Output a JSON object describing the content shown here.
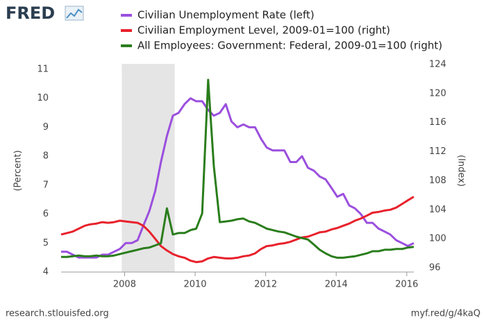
{
  "logo": "FRED",
  "source": "research.stlouisfed.org",
  "short_url": "myf.red/g/4kaQ",
  "chart_data": {
    "type": "line",
    "ylabel": "(Percent)",
    "y2label": "(Index)",
    "x": [
      2006.2,
      2006.37,
      2006.53,
      2006.7,
      2006.87,
      2007.03,
      2007.2,
      2007.37,
      2007.53,
      2007.7,
      2007.87,
      2008.03,
      2008.2,
      2008.37,
      2008.53,
      2008.7,
      2008.87,
      2009.03,
      2009.2,
      2009.37,
      2009.53,
      2009.7,
      2009.87,
      2010.03,
      2010.2,
      2010.37,
      2010.53,
      2010.7,
      2010.87,
      2011.03,
      2011.2,
      2011.37,
      2011.53,
      2011.7,
      2011.87,
      2012.03,
      2012.2,
      2012.37,
      2012.53,
      2012.7,
      2012.87,
      2013.03,
      2013.2,
      2013.37,
      2013.53,
      2013.7,
      2013.87,
      2014.03,
      2014.2,
      2014.37,
      2014.53,
      2014.7,
      2014.87,
      2015.03,
      2015.2,
      2015.37,
      2015.53,
      2015.7,
      2015.87,
      2016.03,
      2016.2
    ],
    "xlim": [
      2006.2,
      2016.2
    ],
    "xticks": [
      2008,
      2010,
      2012,
      2014,
      2016
    ],
    "ylim": [
      4,
      11
    ],
    "yticks": [
      4,
      5,
      6,
      7,
      8,
      9,
      10,
      11
    ],
    "y2lim": [
      95.43,
      123.33
    ],
    "y2ticks": [
      96,
      100,
      104,
      108,
      112,
      116,
      120,
      124
    ],
    "recession": [
      2007.92,
      2009.42
    ],
    "grid": false,
    "legend": "top-left",
    "series": [
      {
        "name": "Civilian Unemployment Rate (left)",
        "color": "#9b4fde",
        "axis": "y",
        "values": [
          4.7,
          4.7,
          4.6,
          4.5,
          4.5,
          4.5,
          4.5,
          4.6,
          4.6,
          4.7,
          4.8,
          5.0,
          5.0,
          5.1,
          5.6,
          6.1,
          6.8,
          7.8,
          8.7,
          9.4,
          9.5,
          9.8,
          10.0,
          9.9,
          9.9,
          9.6,
          9.4,
          9.5,
          9.8,
          9.2,
          9.0,
          9.1,
          9.0,
          9.0,
          8.6,
          8.3,
          8.2,
          8.2,
          8.2,
          7.8,
          7.8,
          8.0,
          7.6,
          7.5,
          7.3,
          7.2,
          6.9,
          6.6,
          6.7,
          6.3,
          6.2,
          6.0,
          5.7,
          5.7,
          5.5,
          5.4,
          5.3,
          5.1,
          5.0,
          4.9,
          5.0
        ]
      },
      {
        "name": "Civilian Employment Level, 2009-01=100 (right)",
        "color": "#e8212b",
        "axis": "y2",
        "values": [
          100.6,
          100.8,
          101.0,
          101.4,
          101.8,
          102.0,
          102.1,
          102.3,
          102.2,
          102.3,
          102.5,
          102.4,
          102.3,
          102.2,
          101.8,
          101.0,
          100.0,
          99.0,
          98.4,
          97.9,
          97.6,
          97.4,
          97.0,
          96.8,
          96.9,
          97.3,
          97.5,
          97.4,
          97.3,
          97.3,
          97.4,
          97.6,
          97.7,
          98.0,
          98.6,
          99.0,
          99.1,
          99.3,
          99.4,
          99.6,
          99.9,
          100.2,
          100.3,
          100.6,
          100.9,
          101.0,
          101.3,
          101.5,
          101.8,
          102.1,
          102.5,
          102.8,
          103.2,
          103.6,
          103.7,
          103.9,
          104.0,
          104.3,
          104.8,
          105.3,
          105.8
        ]
      },
      {
        "name": "All Employees: Government: Federal, 2009-01=100 (right)",
        "color": "#2a7d1c",
        "axis": "y2",
        "values": [
          97.5,
          97.5,
          97.6,
          97.7,
          97.6,
          97.6,
          97.7,
          97.6,
          97.6,
          97.7,
          97.9,
          98.1,
          98.3,
          98.5,
          98.7,
          98.8,
          99.1,
          99.4,
          104.2,
          100.6,
          100.8,
          100.8,
          101.2,
          101.4,
          103.5,
          121.9,
          110.0,
          102.3,
          102.4,
          102.5,
          102.7,
          102.8,
          102.4,
          102.2,
          101.8,
          101.4,
          101.2,
          101.0,
          100.9,
          100.6,
          100.3,
          100.1,
          99.9,
          99.2,
          98.5,
          98.0,
          97.6,
          97.4,
          97.4,
          97.5,
          97.6,
          97.8,
          98.0,
          98.3,
          98.3,
          98.5,
          98.5,
          98.6,
          98.6,
          98.8,
          98.9
        ]
      }
    ]
  }
}
